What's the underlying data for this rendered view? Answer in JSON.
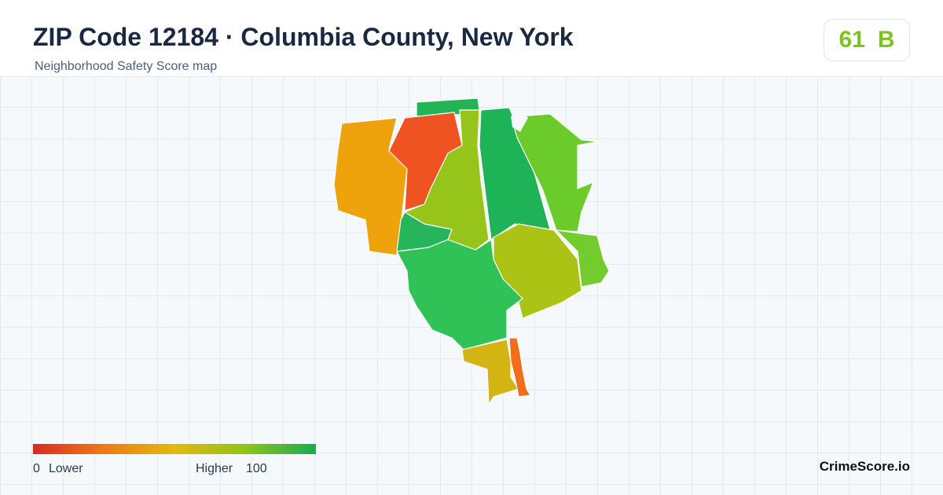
{
  "header": {
    "title": "ZIP Code 12184 · Columbia County, New York",
    "subtitle": "Neighborhood Safety Score map"
  },
  "score": {
    "value": "61",
    "grade": "B"
  },
  "legend": {
    "min": "0",
    "min_label": "Lower",
    "max_label": "Higher",
    "max": "100"
  },
  "brand": "CrimeScore.io"
}
